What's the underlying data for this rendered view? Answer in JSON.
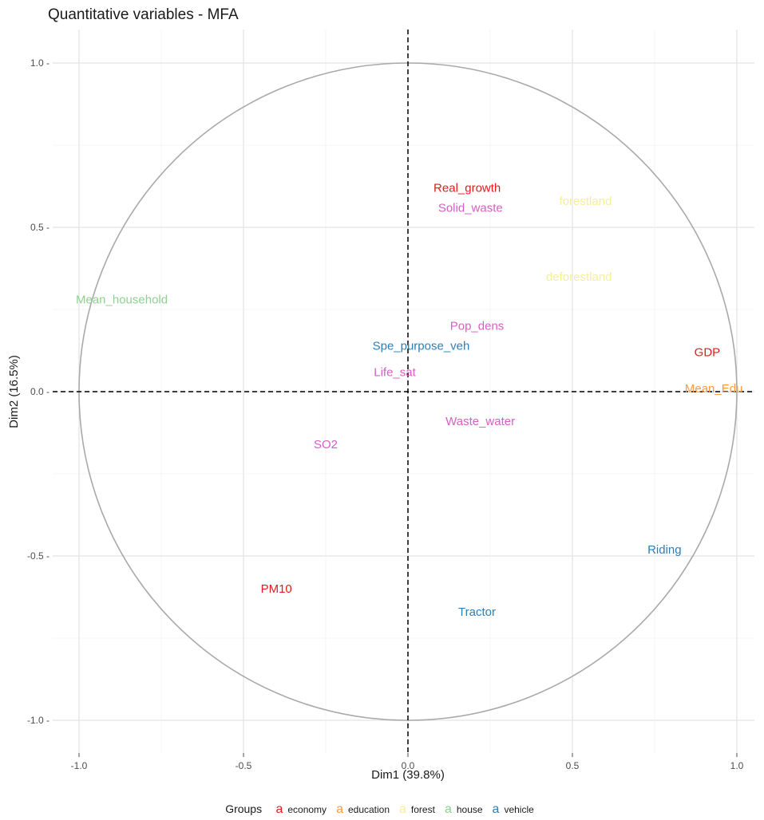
{
  "chart_data": {
    "type": "scatter",
    "title": "Quantitative variables - MFA",
    "xlabel": "Dim1 (39.8%)",
    "ylabel": "Dim2 (16.5%)",
    "xlim": [
      -1.0,
      1.0
    ],
    "ylim": [
      -1.0,
      1.0
    ],
    "x_ticks": [
      -1.0,
      -0.5,
      0.0,
      0.5,
      1.0
    ],
    "x_tick_labels": [
      "-1.0",
      "-0.5",
      "0.0",
      "0.5",
      "1.0"
    ],
    "y_ticks": [
      -1.0,
      -0.5,
      0.0,
      0.5,
      1.0
    ],
    "y_tick_labels": [
      "-1.0 -",
      "-0.5 -",
      "0.0 -",
      "0.5 -",
      "1.0 -"
    ],
    "grid": true,
    "unit_circle": true,
    "legend": {
      "title": "Groups",
      "placement": "bottom",
      "key_glyph": "a",
      "entries": [
        {
          "name": "economy",
          "color": "#e41a1c"
        },
        {
          "name": "education",
          "color": "#ff9a3c"
        },
        {
          "name": "forest",
          "color": "#f5ee9b"
        },
        {
          "name": "house",
          "color": "#8fd18f"
        },
        {
          "name": "vehicle",
          "color": "#2c7fb8"
        }
      ]
    },
    "points": [
      {
        "label": "Real_growth",
        "x": 0.18,
        "y": 0.62,
        "group": "economy",
        "color": "#e41a1c"
      },
      {
        "label": "Solid_waste",
        "x": 0.19,
        "y": 0.56,
        "group": "economy",
        "color": "#d65fc4"
      },
      {
        "label": "forestland",
        "x": 0.54,
        "y": 0.58,
        "group": "forest",
        "color": "#f5ee9b"
      },
      {
        "label": "deforestland",
        "x": 0.52,
        "y": 0.35,
        "group": "forest",
        "color": "#f5ee9b"
      },
      {
        "label": "Mean_household",
        "x": -0.87,
        "y": 0.28,
        "group": "house",
        "color": "#8fd18f"
      },
      {
        "label": "Pop_dens",
        "x": 0.21,
        "y": 0.2,
        "group": "economy",
        "color": "#d65fc4"
      },
      {
        "label": "Spe_purpose_veh",
        "x": 0.04,
        "y": 0.14,
        "group": "vehicle",
        "color": "#2c7fb8"
      },
      {
        "label": "GDP",
        "x": 0.91,
        "y": 0.12,
        "group": "economy",
        "color": "#e41a1c"
      },
      {
        "label": "Life_sat",
        "x": -0.04,
        "y": 0.06,
        "group": "economy",
        "color": "#d65fc4"
      },
      {
        "label": "Mean_Edu",
        "x": 0.93,
        "y": 0.01,
        "group": "education",
        "color": "#ff9a3c"
      },
      {
        "label": "Waste_water",
        "x": 0.22,
        "y": -0.09,
        "group": "economy",
        "color": "#d65fc4"
      },
      {
        "label": "SO2",
        "x": -0.25,
        "y": -0.16,
        "group": "economy",
        "color": "#d65fc4"
      },
      {
        "label": "Riding",
        "x": 0.78,
        "y": -0.48,
        "group": "vehicle",
        "color": "#2c7fb8"
      },
      {
        "label": "PM10",
        "x": -0.4,
        "y": -0.6,
        "group": "economy",
        "color": "#e41a1c"
      },
      {
        "label": "Tractor",
        "x": 0.21,
        "y": -0.67,
        "group": "vehicle",
        "color": "#2c7fb8"
      }
    ]
  }
}
